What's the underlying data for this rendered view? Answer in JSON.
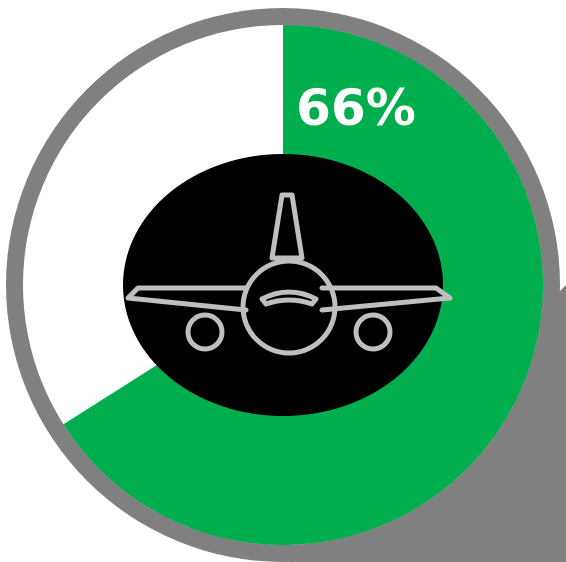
{
  "chart_data": {
    "type": "pie",
    "title": "",
    "values": [
      66,
      34
    ],
    "value_label": "66%",
    "slice_colors": [
      "#00AE4E",
      "#FFFFFF"
    ],
    "ring_color": "#808080",
    "center_color": "#000000",
    "center_icon": "airplane-icon",
    "label_color": "#FFFFFF"
  }
}
